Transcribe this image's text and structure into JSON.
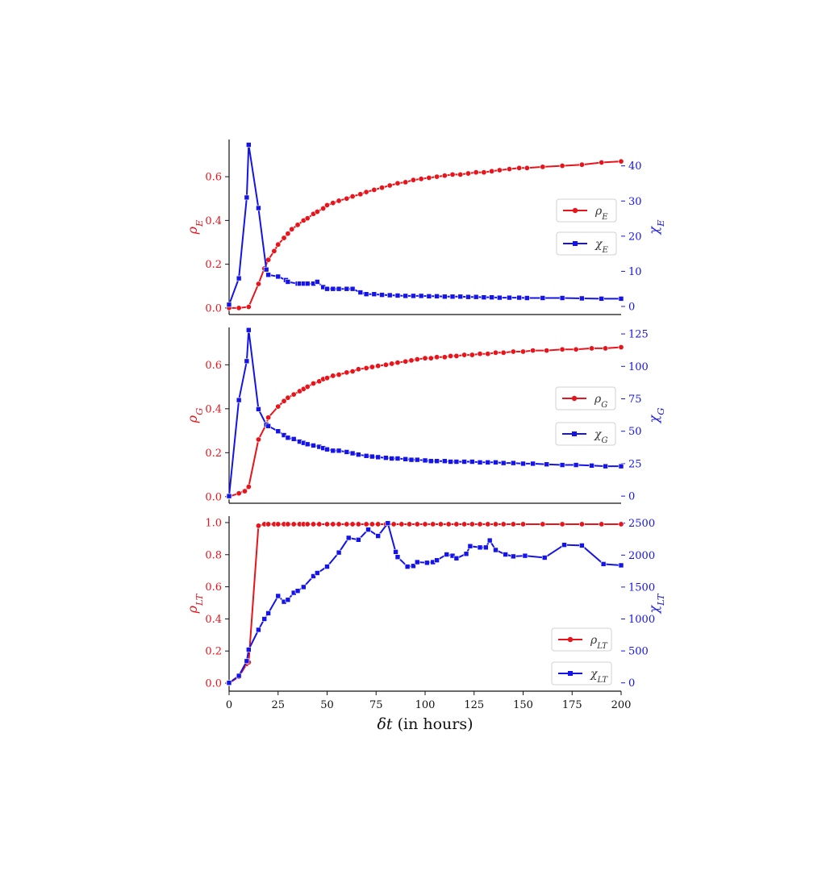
{
  "colors": {
    "rho": "#e8141b",
    "chi": "#1414e8",
    "axis": "#111111"
  },
  "chart_data": [
    {
      "type": "line",
      "panel": "top",
      "xlabel": "",
      "ylabel_left": "ρE",
      "ylabel_left_sym": "ρ",
      "ylabel_left_sub": "E",
      "ylabel_right": "χE",
      "ylabel_right_sym": "χ",
      "ylabel_right_sub": "E",
      "xlim": [
        0,
        200
      ],
      "ylim_left": [
        -0.03,
        0.77
      ],
      "ylim_right": [
        -2.3,
        47.5
      ],
      "yticks_left": [
        0.0,
        0.2,
        0.4,
        0.6
      ],
      "yticks_left_labels": [
        "0.0",
        "0.2",
        "0.4",
        "0.6"
      ],
      "yticks_right": [
        0,
        10,
        20,
        30,
        40
      ],
      "legend_position": "right",
      "grid": false,
      "series": [
        {
          "name": "ρE",
          "sym": "ρ",
          "sub": "E",
          "axis": "left",
          "marker": "circle",
          "x": [
            0,
            5,
            10,
            15,
            18,
            20,
            23,
            25,
            28,
            30,
            32,
            35,
            38,
            40,
            43,
            45,
            48,
            50,
            53,
            56,
            60,
            63,
            67,
            70,
            74,
            78,
            82,
            86,
            90,
            94,
            98,
            102,
            106,
            110,
            114,
            118,
            122,
            126,
            130,
            134,
            138,
            143,
            148,
            152,
            160,
            170,
            180,
            190,
            200
          ],
          "y": [
            0.0,
            0.0,
            0.005,
            0.11,
            0.18,
            0.22,
            0.26,
            0.29,
            0.32,
            0.34,
            0.36,
            0.38,
            0.4,
            0.41,
            0.43,
            0.44,
            0.455,
            0.47,
            0.48,
            0.49,
            0.5,
            0.51,
            0.52,
            0.53,
            0.54,
            0.55,
            0.56,
            0.57,
            0.575,
            0.585,
            0.59,
            0.595,
            0.6,
            0.605,
            0.61,
            0.61,
            0.615,
            0.62,
            0.62,
            0.625,
            0.63,
            0.635,
            0.64,
            0.64,
            0.645,
            0.65,
            0.655,
            0.665,
            0.67
          ]
        },
        {
          "name": "χE",
          "sym": "χ",
          "sub": "E",
          "axis": "right",
          "marker": "square",
          "x": [
            0,
            5,
            9,
            10,
            15,
            19,
            20,
            25,
            29,
            30,
            35,
            36,
            38,
            40,
            43,
            45,
            48,
            50,
            53,
            56,
            60,
            63,
            67,
            70,
            74,
            78,
            82,
            86,
            90,
            94,
            98,
            102,
            106,
            110,
            114,
            118,
            122,
            126,
            130,
            134,
            138,
            143,
            148,
            152,
            160,
            170,
            180,
            190,
            200
          ],
          "y": [
            0.5,
            8.0,
            31.0,
            46.0,
            28.0,
            10.5,
            9.0,
            8.5,
            7.5,
            7.0,
            6.5,
            6.5,
            6.5,
            6.5,
            6.5,
            7.0,
            5.5,
            5.0,
            5.0,
            5.0,
            5.0,
            5.0,
            4.0,
            3.5,
            3.5,
            3.3,
            3.2,
            3.1,
            3.0,
            3.0,
            3.0,
            2.9,
            2.9,
            2.8,
            2.8,
            2.8,
            2.7,
            2.7,
            2.6,
            2.6,
            2.5,
            2.5,
            2.5,
            2.4,
            2.4,
            2.4,
            2.3,
            2.2,
            2.2
          ]
        }
      ]
    },
    {
      "type": "line",
      "panel": "middle",
      "xlabel": "",
      "ylabel_left": "ρG",
      "ylabel_left_sym": "ρ",
      "ylabel_left_sub": "G",
      "ylabel_right": "χG",
      "ylabel_right_sym": "χ",
      "ylabel_right_sub": "G",
      "xlim": [
        0,
        200
      ],
      "ylim_left": [
        -0.03,
        0.77
      ],
      "ylim_right": [
        -5.5,
        130
      ],
      "yticks_left": [
        0.0,
        0.2,
        0.4,
        0.6
      ],
      "yticks_left_labels": [
        "0.0",
        "0.2",
        "0.4",
        "0.6"
      ],
      "yticks_right": [
        0,
        25,
        50,
        75,
        100,
        125
      ],
      "legend_position": "right",
      "grid": false,
      "series": [
        {
          "name": "ρG",
          "sym": "ρ",
          "sub": "G",
          "axis": "left",
          "marker": "circle",
          "x": [
            0,
            5,
            8,
            10,
            15,
            19,
            20,
            25,
            28,
            30,
            33,
            36,
            38,
            40,
            43,
            46,
            48,
            50,
            53,
            56,
            60,
            63,
            66,
            70,
            73,
            76,
            80,
            83,
            86,
            90,
            93,
            96,
            100,
            103,
            106,
            110,
            113,
            116,
            120,
            124,
            128,
            132,
            136,
            140,
            145,
            150,
            155,
            162,
            170,
            177,
            185,
            192,
            200
          ],
          "y": [
            0.0,
            0.015,
            0.025,
            0.045,
            0.26,
            0.33,
            0.36,
            0.41,
            0.435,
            0.45,
            0.465,
            0.48,
            0.49,
            0.5,
            0.515,
            0.525,
            0.535,
            0.54,
            0.55,
            0.555,
            0.565,
            0.57,
            0.58,
            0.585,
            0.59,
            0.595,
            0.6,
            0.605,
            0.61,
            0.615,
            0.62,
            0.625,
            0.63,
            0.63,
            0.635,
            0.635,
            0.64,
            0.64,
            0.645,
            0.645,
            0.65,
            0.65,
            0.655,
            0.655,
            0.66,
            0.66,
            0.665,
            0.665,
            0.67,
            0.67,
            0.675,
            0.675,
            0.68
          ]
        },
        {
          "name": "χG",
          "sym": "χ",
          "sub": "G",
          "axis": "right",
          "marker": "square",
          "x": [
            0,
            5,
            9,
            10,
            15,
            19,
            20,
            25,
            28,
            30,
            33,
            36,
            38,
            40,
            43,
            46,
            48,
            50,
            53,
            56,
            60,
            63,
            66,
            70,
            73,
            76,
            80,
            83,
            86,
            90,
            93,
            96,
            100,
            103,
            106,
            110,
            113,
            116,
            120,
            124,
            128,
            132,
            136,
            140,
            145,
            150,
            155,
            162,
            170,
            177,
            185,
            192,
            200
          ],
          "y": [
            0,
            74,
            104,
            128,
            67,
            55,
            54,
            50,
            47,
            45,
            44,
            42,
            41,
            40,
            39,
            38,
            37,
            36,
            35,
            35,
            34,
            33,
            32,
            31,
            30.5,
            30,
            29.5,
            29,
            29,
            28.5,
            28,
            28,
            27.5,
            27,
            27,
            27,
            26.5,
            26.5,
            26.5,
            26.5,
            26,
            26,
            26,
            25.5,
            25.5,
            25,
            25,
            24.5,
            24,
            24,
            23.5,
            23,
            23
          ]
        }
      ]
    },
    {
      "type": "line",
      "panel": "bottom",
      "xlabel": "δt (in hours)",
      "xlabel_sym": "δt",
      "xlabel_rest": " (in hours)",
      "ylabel_left": "ρLT",
      "ylabel_left_sym": "ρ",
      "ylabel_left_sub": "LT",
      "ylabel_right": "χLT",
      "ylabel_right_sym": "χ",
      "ylabel_right_sub": "LT",
      "xlim": [
        0,
        200
      ],
      "xticks": [
        0,
        25,
        50,
        75,
        100,
        125,
        150,
        175,
        200
      ],
      "ylim_left": [
        -0.05,
        1.04
      ],
      "ylim_right": [
        -130,
        2610
      ],
      "yticks_left": [
        0.0,
        0.2,
        0.4,
        0.6,
        0.8,
        1.0
      ],
      "yticks_left_labels": [
        "0.0",
        "0.2",
        "0.4",
        "0.6",
        "0.8",
        "1.0"
      ],
      "yticks_right": [
        0,
        500,
        1000,
        1500,
        2000,
        2500
      ],
      "legend_position": "lower right",
      "grid": false,
      "series": [
        {
          "name": "ρLT",
          "sym": "ρ",
          "sub": "LT",
          "axis": "left",
          "marker": "circle",
          "x": [
            0,
            5,
            9,
            10,
            15,
            18,
            20,
            23,
            25,
            28,
            30,
            33,
            36,
            38,
            40,
            43,
            46,
            50,
            53,
            56,
            60,
            63,
            66,
            70,
            73,
            76,
            80,
            84,
            88,
            92,
            96,
            100,
            104,
            108,
            112,
            116,
            120,
            124,
            128,
            132,
            136,
            140,
            145,
            150,
            160,
            170,
            180,
            190,
            200
          ],
          "y": [
            0.0,
            0.04,
            0.12,
            0.13,
            0.98,
            0.99,
            0.99,
            0.99,
            0.99,
            0.99,
            0.99,
            0.99,
            0.99,
            0.99,
            0.99,
            0.99,
            0.99,
            0.99,
            0.99,
            0.99,
            0.99,
            0.99,
            0.99,
            0.99,
            0.99,
            0.99,
            0.99,
            0.99,
            0.99,
            0.99,
            0.99,
            0.99,
            0.99,
            0.99,
            0.99,
            0.99,
            0.99,
            0.99,
            0.99,
            0.99,
            0.99,
            0.99,
            0.99,
            0.99,
            0.99,
            0.99,
            0.99,
            0.99,
            0.99
          ]
        },
        {
          "name": "χLT",
          "sym": "χ",
          "sub": "LT",
          "axis": "right",
          "marker": "square",
          "x": [
            0,
            5,
            9,
            10,
            15,
            18,
            20,
            25,
            28,
            30,
            33,
            35,
            38,
            43,
            45,
            50,
            56,
            61,
            66,
            71,
            76,
            81,
            85,
            86,
            91,
            94,
            96,
            101,
            104,
            106,
            111,
            114,
            116,
            121,
            123,
            128,
            131,
            133,
            136,
            141,
            145,
            151,
            161,
            171,
            180,
            191,
            200
          ],
          "y": [
            0,
            110,
            340,
            520,
            830,
            1000,
            1090,
            1360,
            1270,
            1300,
            1410,
            1440,
            1500,
            1670,
            1720,
            1820,
            2040,
            2270,
            2240,
            2400,
            2300,
            2500,
            2050,
            1970,
            1820,
            1830,
            1890,
            1880,
            1890,
            1920,
            2010,
            1990,
            1950,
            2020,
            2140,
            2120,
            2120,
            2230,
            2080,
            2010,
            1980,
            1990,
            1960,
            2160,
            2150,
            1860,
            1840
          ]
        }
      ]
    }
  ]
}
